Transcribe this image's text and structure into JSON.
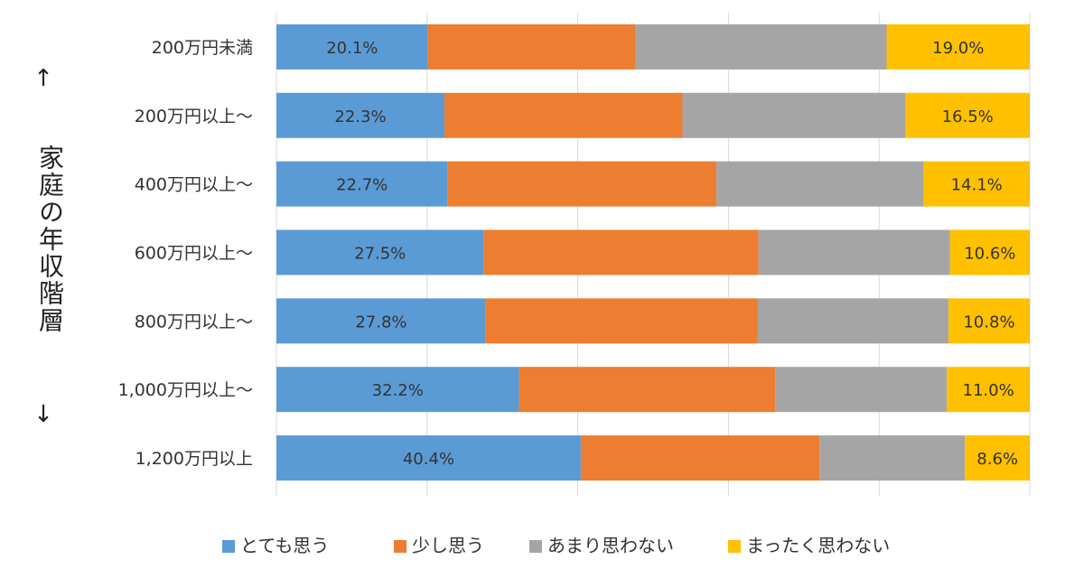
{
  "chart_data": {
    "type": "bar",
    "orientation": "horizontal",
    "stacked": true,
    "percent_stacked": true,
    "ylabel": "家庭の年収階層",
    "arrow_up": "↑",
    "arrow_down": "↓",
    "categories": [
      "200万円未満",
      "200万円以上～",
      "400万円以上～",
      "600万円以上～",
      "800万円以上～",
      "1,000万円以上～",
      "1,200万円以上"
    ],
    "series": [
      {
        "name": "とても思う",
        "color": "#5B9BD5",
        "values": [
          20.1,
          22.3,
          22.7,
          27.5,
          27.8,
          32.2,
          40.4
        ],
        "labels": [
          "20.1%",
          "22.3%",
          "22.7%",
          "27.5%",
          "27.8%",
          "32.2%",
          "40.4%"
        ]
      },
      {
        "name": "少し思う",
        "color": "#ED7D31",
        "values": [
          27.6,
          31.6,
          35.7,
          36.5,
          36.1,
          34.0,
          31.7
        ],
        "labels": []
      },
      {
        "name": "あまり思わない",
        "color": "#A5A5A5",
        "values": [
          33.3,
          29.6,
          27.5,
          25.4,
          25.3,
          22.8,
          19.3
        ],
        "labels": []
      },
      {
        "name": "まったく思わない",
        "color": "#FFC000",
        "values": [
          19.0,
          16.5,
          14.1,
          10.6,
          10.8,
          11.0,
          8.6
        ],
        "labels": [
          "19.0%",
          "16.5%",
          "14.1%",
          "10.6%",
          "10.8%",
          "11.0%",
          "8.6%"
        ]
      }
    ],
    "xlim": [
      0,
      100
    ],
    "grid": true,
    "legend": "bottom"
  }
}
